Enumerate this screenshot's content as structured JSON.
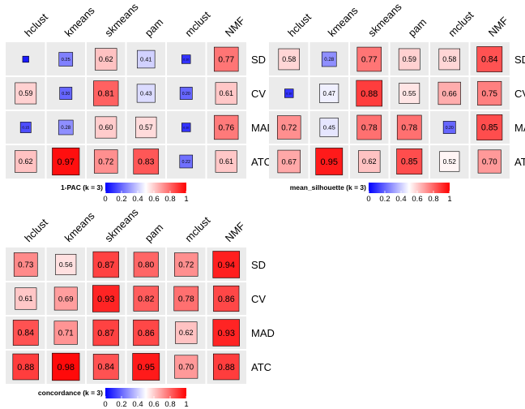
{
  "chart_data": [
    {
      "type": "heatmap",
      "legend_title": "1-PAC (k = 3)",
      "columns": [
        "hclust",
        "kmeans",
        "skmeans",
        "pam",
        "mclust",
        "NMF"
      ],
      "rows": [
        "SD",
        "CV",
        "MAD",
        "ATC"
      ],
      "values": [
        [
          0.05,
          0.25,
          0.62,
          0.41,
          0.1,
          0.77
        ],
        [
          0.59,
          0.2,
          0.81,
          0.43,
          0.2,
          0.61
        ],
        [
          0.15,
          0.28,
          0.6,
          0.57,
          0.1,
          0.76
        ],
        [
          0.62,
          0.97,
          0.72,
          0.83,
          0.22,
          0.61
        ]
      ],
      "labels": [
        [
          "0.05",
          "0.25",
          "0.62",
          "0.41",
          "0.10",
          "0.77"
        ],
        [
          "0.59",
          "0.20",
          "0.81",
          "0.43",
          "0.20",
          "0.61"
        ],
        [
          "0.15",
          "0.28",
          "0.60",
          "0.57",
          "0.10",
          "0.76"
        ],
        [
          "0.62",
          "0.97",
          "0.72",
          "0.83",
          "0.22",
          "0.61"
        ]
      ],
      "scale_ticks": [
        "0",
        "0.2",
        "0.4",
        "0.6",
        "0.8",
        "1"
      ],
      "colors": {
        "low": "#0000ff",
        "mid": "#ffffff",
        "high": "#ff0000"
      }
    },
    {
      "type": "heatmap",
      "legend_title": "mean_silhouette (k = 3)",
      "columns": [
        "hclust",
        "kmeans",
        "skmeans",
        "pam",
        "mclust",
        "NMF"
      ],
      "rows": [
        "SD",
        "CV",
        "MAD",
        "ATC"
      ],
      "values": [
        [
          0.58,
          0.28,
          0.77,
          0.59,
          0.58,
          0.84
        ],
        [
          0.1,
          0.47,
          0.88,
          0.55,
          0.66,
          0.75
        ],
        [
          0.72,
          0.45,
          0.78,
          0.78,
          0.2,
          0.85
        ],
        [
          0.67,
          0.95,
          0.62,
          0.85,
          0.52,
          0.7
        ]
      ],
      "labels": [
        [
          "0.58",
          "0.28",
          "0.77",
          "0.59",
          "0.58",
          "0.84"
        ],
        [
          "0.10",
          "0.47",
          "0.88",
          "0.55",
          "0.66",
          "0.75"
        ],
        [
          "0.72",
          "0.45",
          "0.78",
          "0.78",
          "0.20",
          "0.85"
        ],
        [
          "0.67",
          "0.95",
          "0.62",
          "0.85",
          "0.52",
          "0.70"
        ]
      ],
      "scale_ticks": [
        "0",
        "0.2",
        "0.4",
        "0.6",
        "0.8",
        "1"
      ],
      "colors": {
        "low": "#0000ff",
        "mid": "#ffffff",
        "high": "#ff0000"
      }
    },
    {
      "type": "heatmap",
      "legend_title": "concordance (k = 3)",
      "columns": [
        "hclust",
        "kmeans",
        "skmeans",
        "pam",
        "mclust",
        "NMF"
      ],
      "rows": [
        "SD",
        "CV",
        "MAD",
        "ATC"
      ],
      "values": [
        [
          0.73,
          0.56,
          0.87,
          0.8,
          0.72,
          0.94
        ],
        [
          0.61,
          0.69,
          0.93,
          0.82,
          0.78,
          0.86
        ],
        [
          0.84,
          0.71,
          0.87,
          0.86,
          0.62,
          0.93
        ],
        [
          0.88,
          0.98,
          0.84,
          0.95,
          0.7,
          0.88
        ]
      ],
      "labels": [
        [
          "0.73",
          "0.56",
          "0.87",
          "0.80",
          "0.72",
          "0.94"
        ],
        [
          "0.61",
          "0.69",
          "0.93",
          "0.82",
          "0.78",
          "0.86"
        ],
        [
          "0.84",
          "0.71",
          "0.87",
          "0.86",
          "0.62",
          "0.93"
        ],
        [
          "0.88",
          "0.98",
          "0.84",
          "0.95",
          "0.70",
          "0.88"
        ]
      ],
      "scale_ticks": [
        "0",
        "0.2",
        "0.4",
        "0.6",
        "0.8",
        "1"
      ],
      "colors": {
        "low": "#0000ff",
        "mid": "#ffffff",
        "high": "#ff0000"
      }
    }
  ]
}
